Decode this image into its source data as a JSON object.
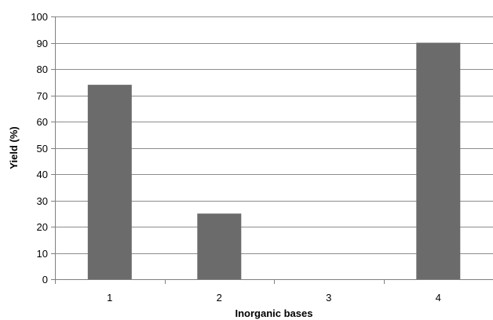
{
  "chart_data": {
    "type": "bar",
    "categories": [
      "1",
      "2",
      "3",
      "4"
    ],
    "values": [
      74,
      25,
      0,
      90
    ],
    "title": "",
    "xlabel": "Inorganic bases",
    "ylabel": "Yield (%)",
    "ylim": [
      0,
      100
    ],
    "yticks": [
      "0",
      "10",
      "20",
      "30",
      "40",
      "50",
      "60",
      "70",
      "80",
      "90",
      "100"
    ],
    "grid": true,
    "legend": "none",
    "colors": {
      "bar": "#6b6b6b",
      "grid": "#8c8c8c",
      "axis": "#808080"
    }
  }
}
